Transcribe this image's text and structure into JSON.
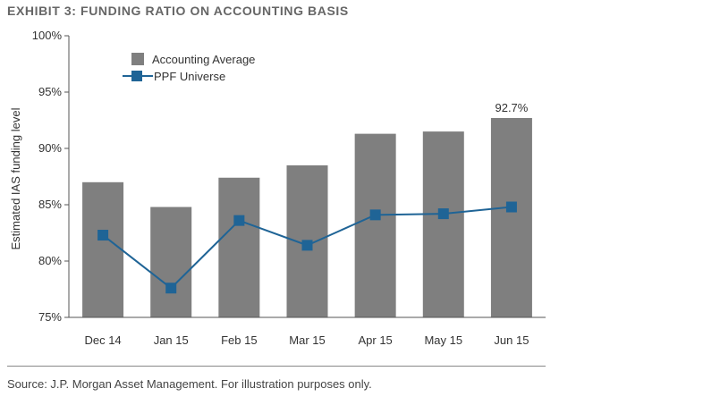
{
  "header": {
    "title": "EXHIBIT 3: FUNDING RATIO ON ACCOUNTING BASIS"
  },
  "footer": {
    "source": "Source: J.P. Morgan Asset Management. For illustration purposes only."
  },
  "colors": {
    "bar": "#7f7f7f",
    "line": "#1f6496",
    "axis": "#555555"
  },
  "chart_data": {
    "type": "bar",
    "title": "EXHIBIT 3: FUNDING RATIO ON ACCOUNTING BASIS",
    "ylabel": "Estimated IAS funding level",
    "xlabel": "",
    "categories": [
      "Dec 14",
      "Jan 15",
      "Feb 15",
      "Mar 15",
      "Apr 15",
      "May 15",
      "Jun 15"
    ],
    "ylim": [
      75,
      100
    ],
    "yticks": [
      75,
      80,
      85,
      90,
      95,
      100
    ],
    "ytick_labels": [
      "75%",
      "80%",
      "85%",
      "90%",
      "95%",
      "100%"
    ],
    "grid": false,
    "legend": "top-left",
    "series": [
      {
        "name": "Accounting Average",
        "type": "bar",
        "values": [
          87.0,
          84.8,
          87.4,
          88.5,
          91.3,
          91.5,
          92.7
        ]
      },
      {
        "name": "PPF Universe",
        "type": "line",
        "values": [
          82.3,
          77.6,
          83.6,
          81.4,
          84.1,
          84.2,
          84.8
        ]
      }
    ],
    "annotations": [
      {
        "category": "Jun 15",
        "series": "Accounting Average",
        "text": "92.7%"
      }
    ]
  }
}
